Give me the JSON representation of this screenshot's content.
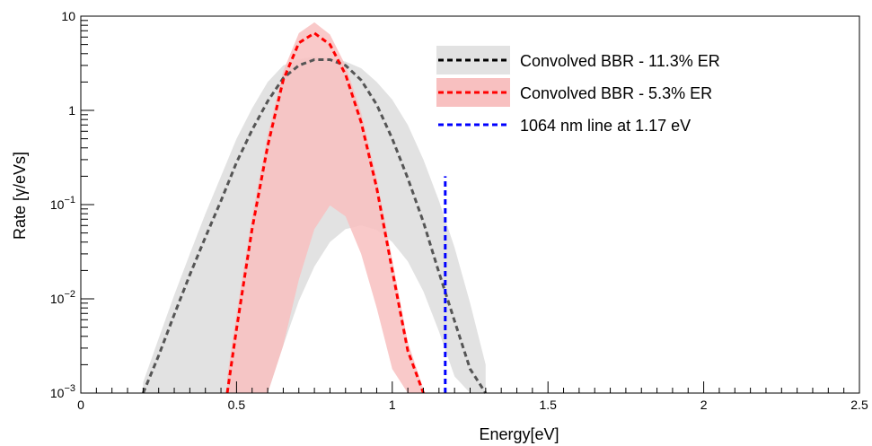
{
  "chart_data": {
    "type": "line",
    "xlabel": "Energy[eV]",
    "ylabel": "Rate [γ/eVs]",
    "xlim": [
      0,
      2.5
    ],
    "ylim": [
      0.001,
      10
    ],
    "yscale": "log",
    "grid": false,
    "legend_placement": "top-right",
    "x_ticks": [
      0,
      0.5,
      1,
      1.5,
      2,
      2.5
    ],
    "x_tick_labels": [
      "0",
      "0.5",
      "1",
      "1.5",
      "2",
      "2.5"
    ],
    "y_ticks": [
      {
        "value": 10,
        "base": "10",
        "exp": ""
      },
      {
        "value": 1,
        "base": "1",
        "exp": ""
      },
      {
        "value": 0.1,
        "base": "10",
        "exp": "−1"
      },
      {
        "value": 0.01,
        "base": "10",
        "exp": "−2"
      },
      {
        "value": 0.001,
        "base": "10",
        "exp": "−3"
      }
    ],
    "series": [
      {
        "name": "Convolved BBR - 11.3% ER",
        "line_color": "#555555",
        "band_color": "#e2e2e2",
        "style": "dashed",
        "x": [
          0.2,
          0.25,
          0.3,
          0.35,
          0.4,
          0.45,
          0.5,
          0.55,
          0.6,
          0.65,
          0.7,
          0.75,
          0.8,
          0.85,
          0.9,
          0.95,
          1.0,
          1.05,
          1.1,
          1.15,
          1.2,
          1.25,
          1.3
        ],
        "y": [
          0.001,
          0.0025,
          0.0068,
          0.018,
          0.045,
          0.11,
          0.28,
          0.62,
          1.25,
          2.2,
          3.0,
          3.45,
          3.45,
          3.0,
          2.1,
          1.15,
          0.5,
          0.19,
          0.065,
          0.019,
          0.0058,
          0.0018,
          0.001
        ],
        "band_upper": [
          0.0013,
          0.0038,
          0.011,
          0.03,
          0.08,
          0.2,
          0.5,
          1.05,
          2.0,
          3.0,
          3.5,
          3.7,
          3.6,
          3.3,
          2.8,
          2.0,
          1.3,
          0.7,
          0.3,
          0.11,
          0.035,
          0.009,
          0.002
        ],
        "band_lower": [
          0.001,
          0.001,
          0.001,
          0.001,
          0.001,
          0.001,
          0.001,
          0.001,
          0.001,
          0.0032,
          0.0095,
          0.022,
          0.04,
          0.055,
          0.06,
          0.054,
          0.04,
          0.025,
          0.012,
          0.0045,
          0.0015,
          0.001,
          0.001
        ]
      },
      {
        "name": "Convolved BBR - 5.3% ER",
        "line_color": "#ff0000",
        "band_color": "#f8c0c0",
        "style": "dashed",
        "x": [
          0.47,
          0.5,
          0.55,
          0.6,
          0.65,
          0.7,
          0.75,
          0.8,
          0.85,
          0.9,
          0.95,
          1.0,
          1.05,
          1.1
        ],
        "y": [
          0.001,
          0.0048,
          0.055,
          0.42,
          2.1,
          5.2,
          6.6,
          5.0,
          2.4,
          0.75,
          0.15,
          0.02,
          0.0028,
          0.001
        ],
        "band_upper": [
          0.0015,
          0.007,
          0.075,
          0.55,
          2.6,
          6.6,
          8.6,
          6.4,
          3.0,
          0.95,
          0.19,
          0.026,
          0.0035,
          0.0011
        ],
        "band_lower": [
          0.001,
          0.001,
          0.001,
          0.001,
          0.0032,
          0.016,
          0.055,
          0.098,
          0.075,
          0.03,
          0.008,
          0.0018,
          0.001,
          0.001
        ]
      },
      {
        "name": "1064 nm line at 1.17 eV",
        "line_color": "#0000ff",
        "style": "dashed",
        "x": [
          1.17,
          1.17
        ],
        "y": [
          0.001,
          0.2
        ]
      }
    ],
    "legend": [
      {
        "label": "Convolved BBR - 11.3% ER",
        "line_color": "#000000",
        "band_color": "#e2e2e2"
      },
      {
        "label": "Convolved BBR - 5.3% ER",
        "line_color": "#ff0000",
        "band_color": "#f8c0c0"
      },
      {
        "label": "1064 nm line at 1.17 eV",
        "line_color": "#0000ff",
        "band_color": ""
      }
    ]
  }
}
